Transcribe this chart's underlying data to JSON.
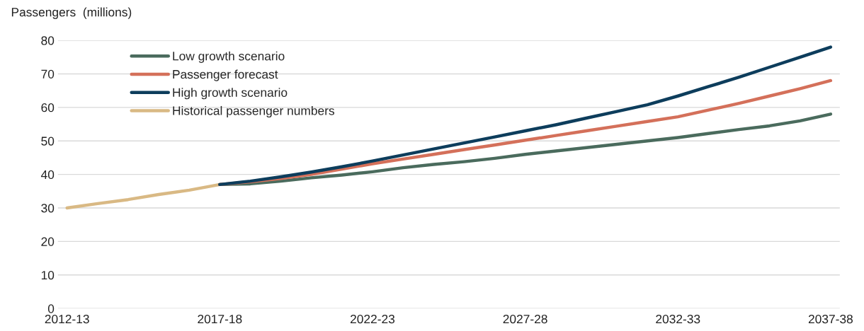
{
  "chart_data": {
    "type": "line",
    "ylabel": "Passengers  (millions)",
    "categories": [
      "2012-13",
      null,
      null,
      null,
      null,
      "2017-18",
      null,
      null,
      null,
      null,
      "2022-23",
      null,
      null,
      null,
      null,
      "2027-28",
      null,
      null,
      null,
      null,
      "2032-33",
      null,
      null,
      null,
      null,
      "2037-38"
    ],
    "series": [
      {
        "name": "Low growth scenario",
        "color": "#4a6b5d",
        "values": [
          null,
          null,
          null,
          null,
          null,
          37,
          37.2,
          38,
          39,
          39.8,
          40.8,
          42,
          43,
          43.8,
          44.8,
          46,
          47,
          48,
          49,
          50,
          51,
          52.2,
          53.4,
          54.5,
          56,
          58
        ]
      },
      {
        "name": "Passenger forecast",
        "color": "#d4705a",
        "values": [
          null,
          null,
          null,
          null,
          null,
          37,
          37.8,
          38.8,
          40,
          41.6,
          43.2,
          44.6,
          46,
          47.4,
          48.8,
          50.2,
          51.6,
          53,
          54.4,
          55.8,
          57.2,
          59.2,
          61.2,
          63.4,
          65.6,
          68
        ]
      },
      {
        "name": "High growth scenario",
        "color": "#0d3d5c",
        "values": [
          null,
          null,
          null,
          null,
          null,
          37,
          38,
          39.3,
          40.7,
          42.3,
          44,
          45.8,
          47.6,
          49.4,
          51.2,
          53,
          54.8,
          56.8,
          58.8,
          60.8,
          63.4,
          66.2,
          69,
          72,
          75,
          78
        ]
      },
      {
        "name": "Historical passenger numbers",
        "color": "#d9b984",
        "values": [
          30,
          31.3,
          32.5,
          34,
          35.3,
          37,
          null,
          null,
          null,
          null,
          null,
          null,
          null,
          null,
          null,
          null,
          null,
          null,
          null,
          null,
          null,
          null,
          null,
          null,
          null,
          null
        ]
      }
    ],
    "ylim": [
      0,
      80
    ],
    "yticks": [
      0,
      10,
      20,
      30,
      40,
      50,
      60,
      70,
      80
    ],
    "grid": "y",
    "legend": "top left",
    "marker": "none",
    "line_style": "solid"
  }
}
